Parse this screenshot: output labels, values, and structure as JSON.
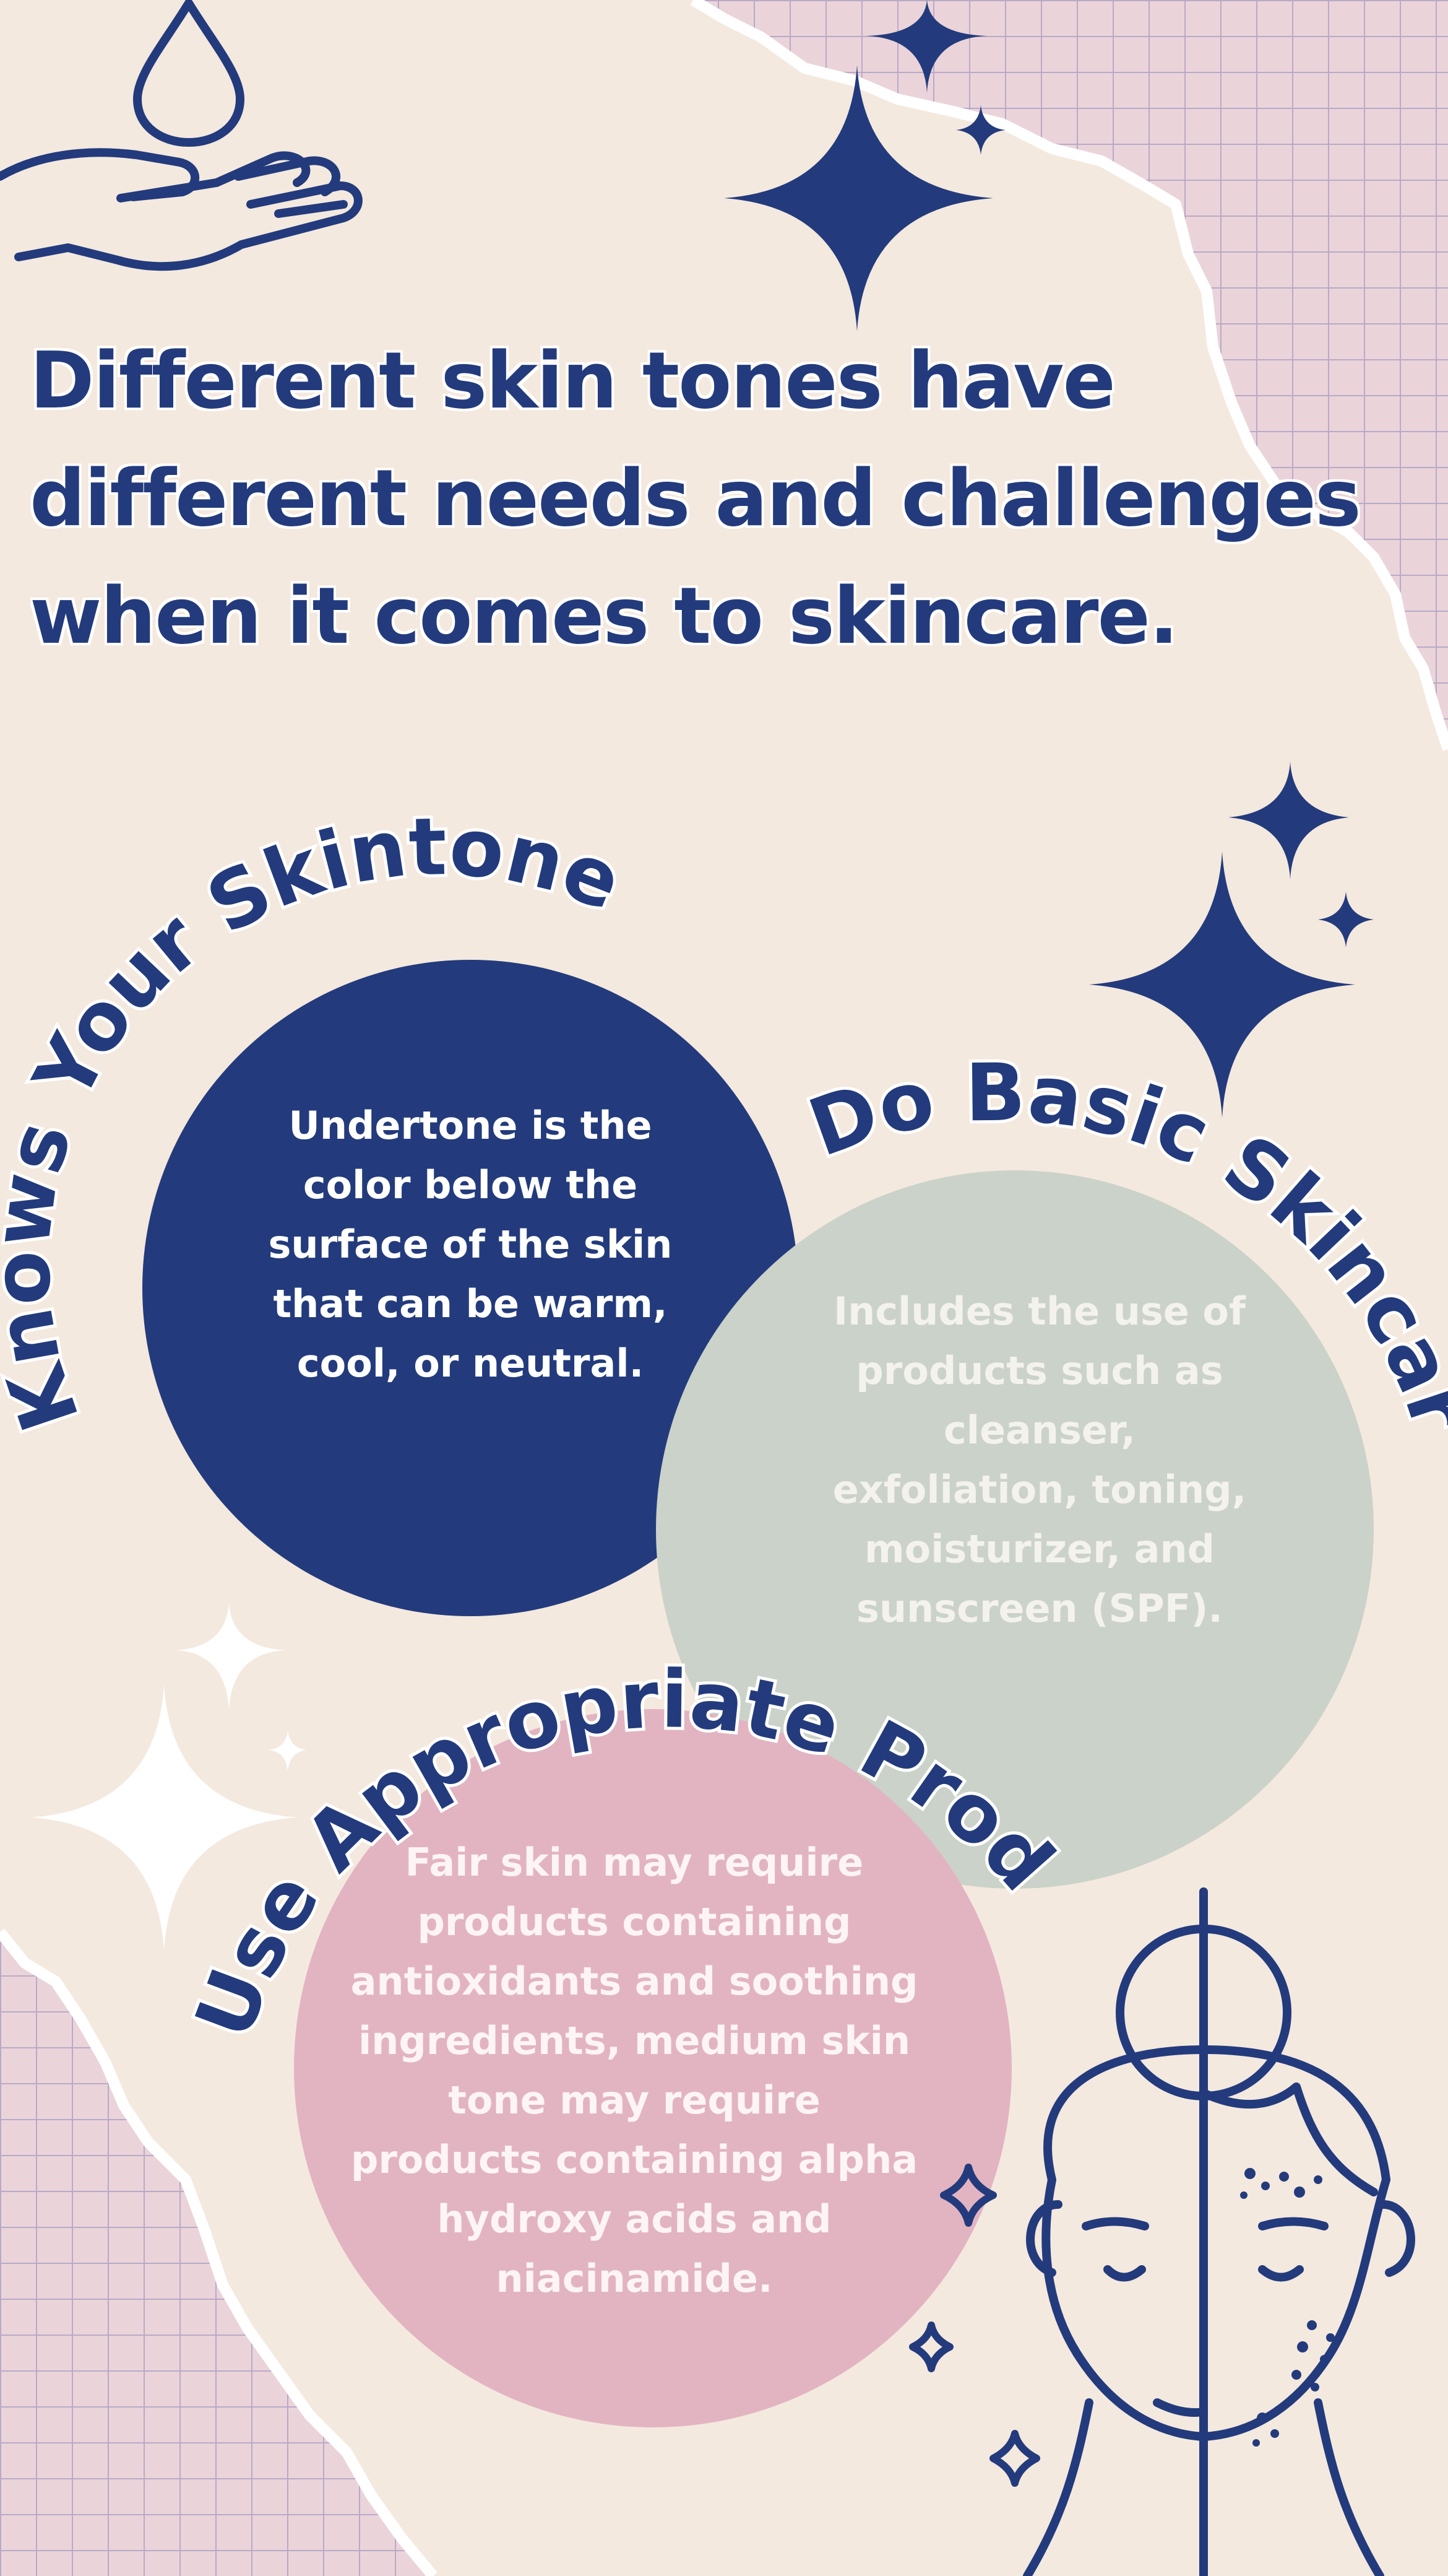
{
  "headline": "Different skin tones have different needs and challenges when it comes to skincare.",
  "sections": [
    {
      "title": "Knows Your Skintone",
      "body": "Undertone is the color below the surface of the skin that can be warm, cool, or neutral.",
      "color": "#233b7c"
    },
    {
      "title": "Do Basic Skincare",
      "body": "Includes the use of products such as cleanser, exfoliation, toning, moisturizer, and sunscreen (SPF).",
      "color": "#cbd2c9"
    },
    {
      "title": "Use Appropriate Products",
      "body": "Fair skin may require products containing antioxidants and soothing ingredients, medium skin tone may require products containing alpha hydroxy acids and niacinamide.",
      "color": "#e2b4c1"
    }
  ],
  "colors": {
    "background": "#f4e9df",
    "navy": "#233b7c",
    "grid_pink": "#ead4da",
    "grid_line": "#b9a9c6"
  },
  "icons": [
    "water-drop-hand-icon",
    "sparkle-icon",
    "half-face-acne-icon"
  ]
}
